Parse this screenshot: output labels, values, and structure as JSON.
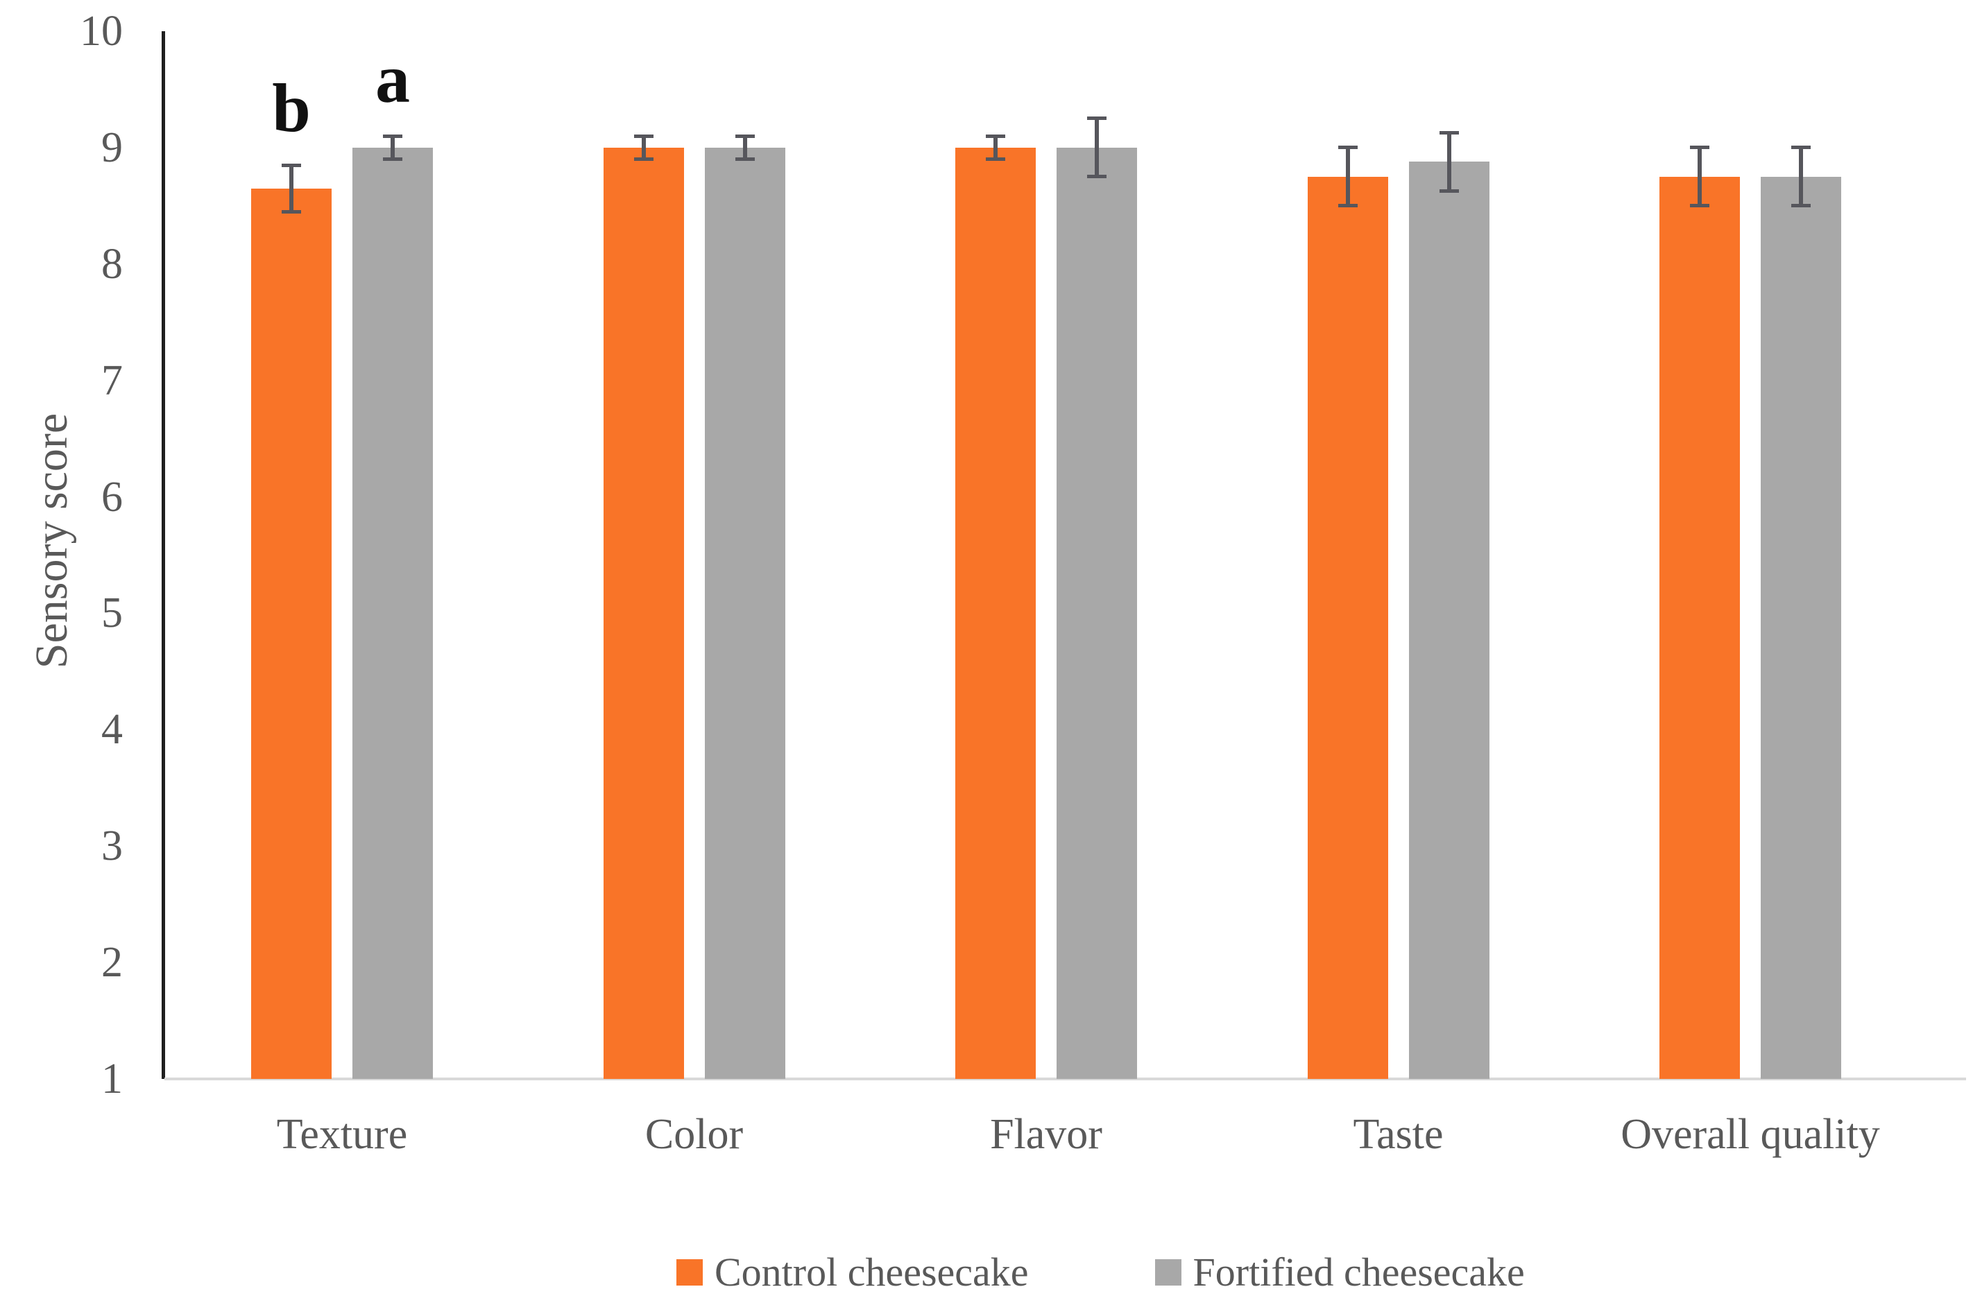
{
  "chart_data": {
    "type": "bar",
    "title": "",
    "xlabel": "",
    "ylabel": "Sensory score",
    "ylim": [
      1,
      10
    ],
    "yticks": [
      1,
      2,
      3,
      4,
      5,
      6,
      7,
      8,
      9,
      10
    ],
    "grid": false,
    "legend_position": "bottom",
    "categories": [
      "Texture",
      "Color",
      "Flavor",
      "Taste",
      "Overall quality"
    ],
    "series": [
      {
        "name": "Control cheesecake",
        "color": "#f97428",
        "values": [
          8.65,
          9.0,
          9.0,
          8.75,
          8.75
        ],
        "errors": [
          0.2,
          0.1,
          0.1,
          0.25,
          0.25
        ]
      },
      {
        "name": "Fortified cheesecake",
        "color": "#a8a8a8",
        "values": [
          9.0,
          9.0,
          9.0,
          8.88,
          8.75
        ],
        "errors": [
          0.1,
          0.1,
          0.25,
          0.25,
          0.25
        ]
      }
    ],
    "annotations": [
      {
        "category": "Texture",
        "series": "Control cheesecake",
        "label": "b"
      },
      {
        "category": "Texture",
        "series": "Fortified cheesecake",
        "label": "a"
      }
    ],
    "colors": {
      "error_bar": "#56565c",
      "axis_line": "#1f1f1f",
      "baseline": "#d9d9d9",
      "text": "#595959",
      "annotation_text": "#111111"
    }
  }
}
